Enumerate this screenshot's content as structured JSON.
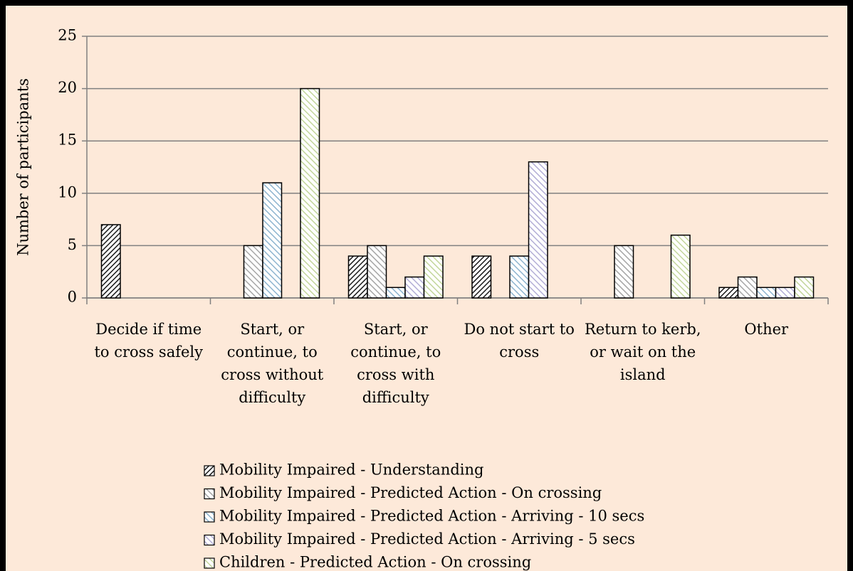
{
  "chart_data": {
    "type": "bar",
    "y_label": "Number of participants",
    "categories": [
      "Decide if time to cross safely",
      "Start, or continue, to cross without difficulty",
      "Start, or continue, to cross with difficulty",
      "Do not start to cross",
      "Return to kerb, or wait on the island",
      "Other"
    ],
    "series": [
      {
        "name": "Mobility Impaired - Understanding",
        "color": "#1a1a1a",
        "values": [
          7,
          0,
          4,
          4,
          0,
          1
        ]
      },
      {
        "name": "Mobility Impaired - Predicted Action - On crossing",
        "color": "#a6a6a6",
        "values": [
          0,
          5,
          5,
          0,
          5,
          2
        ]
      },
      {
        "name": "Mobility Impaired - Predicted Action - Arriving - 10 secs",
        "color": "#8db4cf",
        "values": [
          0,
          11,
          1,
          4,
          0,
          1
        ]
      },
      {
        "name": "Mobility Impaired - Predicted Action - Arriving - 5 secs",
        "color": "#b3aed6",
        "values": [
          0,
          0,
          2,
          13,
          0,
          1
        ]
      },
      {
        "name": "Children - Predicted Action - On crossing",
        "color": "#c3d69b",
        "values": [
          0,
          20,
          4,
          0,
          6,
          2
        ]
      }
    ],
    "ylim": [
      0,
      25
    ],
    "yticks": [
      0,
      5,
      10,
      15,
      20,
      25
    ],
    "grid": true,
    "legend": "bottom"
  }
}
